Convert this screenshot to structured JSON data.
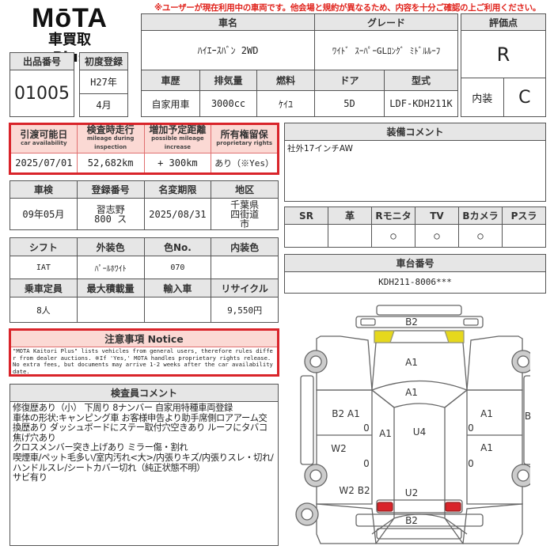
{
  "warning": "※ユーザーが現在利用中の車両です。他会場と規約が異なるため、内容を十分ご確認の上ご利用ください。",
  "logo": {
    "brand": "MōTA",
    "sub": "車買取 Plus"
  },
  "listing": {
    "no_label": "出品番号",
    "no": "01005",
    "reg_label": "初度登録",
    "reg_year": "H27年",
    "reg_month": "4月"
  },
  "vehicle": {
    "name_label": "車名",
    "name": "ﾊｲｴｰｽﾊﾞﾝ 2WD",
    "grade_label": "グレード",
    "grade": "ﾜｲﾄﾞ ｽｰﾊﾟｰGLﾛﾝｸﾞ ﾐﾄﾞﾙﾙｰﾌ",
    "headers": [
      "車歴",
      "排気量",
      "燃料",
      "ドア",
      "型式"
    ],
    "values": [
      "自家用車",
      "3000cc",
      "ｹｲﾕ",
      "5D",
      "LDF-KDH211K"
    ]
  },
  "score": {
    "label": "評価点",
    "value": "R",
    "interior_label": "内装",
    "interior": "C"
  },
  "availability": {
    "headers": [
      {
        "jp": "引渡可能日",
        "en": "car availability"
      },
      {
        "jp": "検査時走行",
        "en": "mileage during inspection"
      },
      {
        "jp": "増加予定距離",
        "en": "possible mileage increase"
      },
      {
        "jp": "所有権留保",
        "en": "proprietary rights"
      }
    ],
    "values": [
      "2025/07/01",
      "52,682km",
      "+ 300km",
      "あり（※Yes）"
    ]
  },
  "registration": {
    "headers": [
      "車検",
      "登録番号",
      "名変期限",
      "地区"
    ],
    "values": [
      "09年05月",
      "習志野 800 ス",
      "2025/08/31",
      "千葉県 四街道市"
    ]
  },
  "specs": {
    "headers1": [
      "シフト",
      "外装色",
      "色No.",
      "内装色"
    ],
    "values1": [
      "IAT",
      "ﾊﾟｰﾙﾎﾜｲﾄ",
      "070",
      ""
    ],
    "headers2": [
      "乗車定員",
      "最大積載量",
      "輸入車",
      "リサイクル"
    ],
    "values2": [
      "8人",
      "",
      "",
      "9,550円"
    ]
  },
  "notice": {
    "title": "注意事項 Notice",
    "text": "\"MOTA Kaitori Plus\" lists vehicles from general users, therefore rules differ from dealer auctions. ※If 'Yes,' MOTA handles proprietary rights release. No extra fees, but documents may arrive 1-2 weeks after the car availability date."
  },
  "inspector": {
    "title": "検査員コメント",
    "lines": [
      "修復歴あり（小） 下周り 8ナンバー 自家用特種車両登録",
      "車体の形状:キャンピング車 お客様申告より助手席側ロアアーム交換歴あり ダッシュボードにステー取付穴空きあり ルーフにタバコ焦げ穴あり",
      "クロスメンバー突き上げあり ミラー傷・割れ",
      "喫煙車/ペット毛多い/室内汚れ<大>/内張りキズ/内張りスレ・切れ/ハンドルスレ/シートカバー切れ（純正状態不明）",
      "サビ有り"
    ]
  },
  "equipment": {
    "title": "装備コメント",
    "text": "社外17インチAW"
  },
  "options": {
    "headers": [
      "SR",
      "革",
      "Rモニタ",
      "TV",
      "Bカメラ",
      "Pスラ"
    ],
    "values": [
      "",
      "",
      "○",
      "○",
      "○",
      ""
    ]
  },
  "chassis": {
    "title": "車台番号",
    "value": "KDH211-8006***"
  },
  "diagram": {
    "labels": [
      "B2",
      "A1",
      "A1",
      "B2 A1",
      "0",
      "A1",
      "U4",
      "W2",
      "0",
      "A1",
      "A1",
      "0",
      "0",
      "W2 B2",
      "U2",
      "B2",
      "B"
    ],
    "colors": {
      "front_lights": "#e6d81c",
      "rear_lights": "#d9242a"
    }
  }
}
